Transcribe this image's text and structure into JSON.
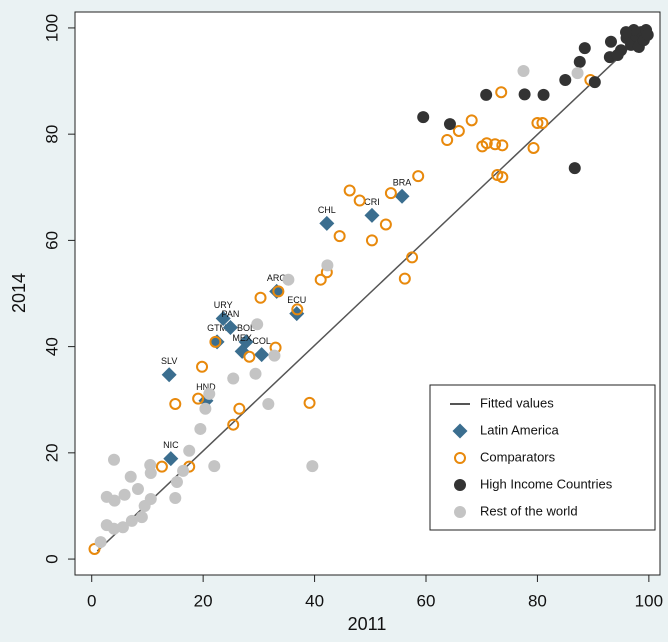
{
  "chart_data": {
    "type": "scatter",
    "x_label": "2011",
    "y_label": "2014",
    "xlim": [
      -3,
      102
    ],
    "ylim": [
      -3,
      103
    ],
    "xticks": [
      0,
      20,
      40,
      60,
      80,
      100
    ],
    "yticks": [
      0,
      20,
      40,
      60,
      80,
      100
    ],
    "grid": false,
    "legend": "lower right",
    "series": [
      {
        "name": "Fitted values",
        "marker": "line",
        "color": "#555555",
        "x": [
          1,
          100
        ],
        "values": [
          1.5,
          99.8
        ]
      },
      {
        "name": "Latin America",
        "marker": "diamond",
        "color": "#3b6e8f",
        "x": [
          14.2,
          13.9,
          20.5,
          22.5,
          23.6,
          24.9,
          27.7,
          27.0,
          30.5,
          33.2,
          36.8,
          42.2,
          50.3,
          55.7
        ],
        "values": [
          18.9,
          34.7,
          29.8,
          40.9,
          45.3,
          43.6,
          40.9,
          39.1,
          38.5,
          50.4,
          46.2,
          63.2,
          64.7,
          68.3
        ],
        "labels": [
          "NIC",
          "SLV",
          "HND",
          "GTM",
          "URY",
          "PAN",
          "BOL",
          "MEX",
          "COL",
          "ARG",
          "ECU",
          "CHL",
          "CRI",
          "BRA"
        ]
      },
      {
        "name": "Comparators",
        "marker": "hollow-circle",
        "color": "#e8890c",
        "x": [
          0.5,
          12.6,
          17.5,
          15,
          19.1,
          19.8,
          22.2,
          25.4,
          26.5,
          28.3,
          33,
          30.3,
          33.5,
          39.1,
          41.1,
          42.2,
          36.9,
          44.5,
          46.3,
          48.1,
          50.3,
          52.8,
          53.7,
          56.2,
          57.5,
          58.6,
          63.8,
          65.9,
          68.2,
          70.1,
          70.9,
          72.4,
          73.5,
          72.8,
          73.7,
          73.7,
          79.3,
          80,
          80.9,
          89.5
        ],
        "values": [
          1.9,
          17.4,
          17.4,
          29.2,
          30.2,
          36.2,
          40.9,
          25.3,
          28.3,
          38.1,
          39.8,
          49.2,
          50.4,
          29.4,
          52.6,
          54,
          47,
          60.8,
          69.4,
          67.5,
          60,
          63,
          68.9,
          52.8,
          56.8,
          72.1,
          78.9,
          80.6,
          82.6,
          77.7,
          78.3,
          78.1,
          87.9,
          72.3,
          71.9,
          77.9,
          77.4,
          82.1,
          82.1,
          90.2
        ]
      },
      {
        "name": "High Income Countries",
        "marker": "circle",
        "color": "#333333",
        "x": [
          59.5,
          64.3,
          70.8,
          77.7,
          81.1,
          85,
          86.7,
          87.6,
          88.5,
          90.3,
          93,
          93.2,
          95,
          96,
          96.8,
          97.7,
          98.2,
          98.6,
          99.1,
          99.5,
          99.8,
          97.3,
          95.9,
          94.4
        ],
        "values": [
          83.2,
          81.9,
          87.4,
          87.5,
          87.4,
          90.2,
          73.6,
          93.6,
          96.2,
          89.8,
          94.5,
          97.4,
          95.8,
          98.1,
          96.8,
          98.5,
          96.4,
          99.2,
          97.7,
          99.6,
          98.7,
          99.6,
          99.2,
          94.9
        ]
      },
      {
        "name": "Rest of the world",
        "marker": "circle",
        "color": "#c4c4c4",
        "x": [
          1.6,
          2.7,
          4,
          4.1,
          2.7,
          4,
          5.6,
          5.9,
          7.2,
          7,
          8.3,
          9,
          9.5,
          10.6,
          10.5,
          10.6,
          15,
          15.3,
          16.4,
          17.5,
          19.5,
          20.4,
          21.1,
          22,
          25.4,
          29.4,
          29.7,
          31.7,
          32.8,
          35.3,
          42.3,
          39.6,
          77.5,
          87.2
        ],
        "values": [
          3.2,
          6.4,
          5.7,
          11,
          11.7,
          18.7,
          6,
          12.1,
          7.2,
          15.5,
          13.2,
          7.9,
          10,
          11.3,
          17.7,
          16.2,
          11.5,
          14.5,
          16.6,
          20.4,
          24.5,
          28.3,
          31.1,
          17.5,
          34,
          34.9,
          44.2,
          29.2,
          38.3,
          52.6,
          55.3,
          17.5,
          91.9,
          91.5
        ]
      }
    ]
  }
}
